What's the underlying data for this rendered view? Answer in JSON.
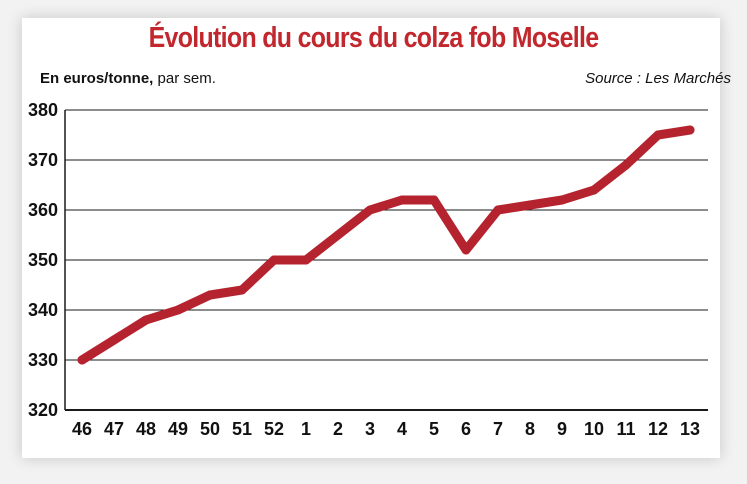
{
  "chart_data": {
    "type": "line",
    "title": "Évolution du cours du colza fob Moselle",
    "unit_label_bold": "En euros/tonne,",
    "unit_label_rest": " par sem.",
    "source": "Source : Les Marchés",
    "x": [
      "46",
      "47",
      "48",
      "49",
      "50",
      "51",
      "52",
      "1",
      "2",
      "3",
      "4",
      "5",
      "6",
      "7",
      "8",
      "9",
      "10",
      "11",
      "12",
      "13"
    ],
    "series": [
      {
        "values": [
          330,
          334,
          338,
          340,
          343,
          344,
          350,
          350,
          355,
          360,
          362,
          362,
          352,
          360,
          361,
          362,
          364,
          369,
          375,
          376
        ]
      }
    ],
    "yticks": [
      320,
      330,
      340,
      350,
      360,
      370,
      380
    ],
    "ylim": [
      320,
      380
    ],
    "grid": true,
    "line_color": "#b5232f"
  }
}
